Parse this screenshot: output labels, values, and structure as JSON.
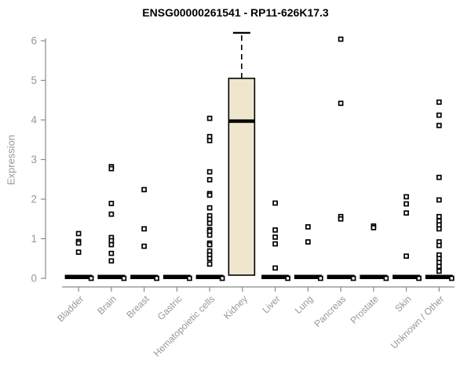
{
  "title": "ENSG00000261541 - RP11-626K17.3",
  "colors": {
    "background": "#ffffff",
    "title_text": "#000000",
    "axis_line": "#8a8a8a",
    "tick_text": "#979797",
    "point_stroke": "#000000",
    "point_fill": "#ffffff",
    "zero_bar": "#000000",
    "box_fill": "#efe7cd",
    "box_stroke": "#000000"
  },
  "chart_data": {
    "type": "boxplot",
    "title": "ENSG00000261541 - RP11-626K17.3",
    "xlabel": "",
    "ylabel": "Expression",
    "ylim": [
      0,
      6
    ],
    "yticks": [
      0,
      1,
      2,
      3,
      4,
      5,
      6
    ],
    "grid": false,
    "legend": false,
    "marker": "open-square",
    "categories": [
      "Bladder",
      "Brain",
      "Breast",
      "Gastric",
      "Hematopoietic cells",
      "Kidney",
      "Liver",
      "Lung",
      "Pancreas",
      "Prostate",
      "Skin",
      "Unknown / Other"
    ],
    "series": [
      {
        "name": "Bladder",
        "zero_cluster": true,
        "points": [
          1.13,
          0.93,
          0.89,
          0.66
        ]
      },
      {
        "name": "Brain",
        "zero_cluster": true,
        "points": [
          2.82,
          2.77,
          1.89,
          1.62,
          1.03,
          0.95,
          0.85,
          0.63,
          0.44
        ]
      },
      {
        "name": "Breast",
        "zero_cluster": true,
        "points": [
          2.24,
          1.25,
          0.81
        ]
      },
      {
        "name": "Gastric",
        "zero_cluster": true,
        "points": []
      },
      {
        "name": "Hematopoietic cells",
        "zero_cluster": true,
        "points": [
          4.04,
          3.58,
          3.48,
          2.69,
          2.49,
          2.14,
          2.1,
          1.78,
          1.58,
          1.49,
          1.39,
          1.23,
          1.19,
          1.09,
          0.89,
          0.85,
          0.69,
          0.59,
          0.5,
          0.36
        ]
      },
      {
        "name": "Kidney",
        "zero_cluster": false,
        "points": [],
        "box": {
          "q1": 0.08,
          "median": 3.97,
          "q3": 5.05,
          "whisker_high": 6.2
        }
      },
      {
        "name": "Liver",
        "zero_cluster": true,
        "points": [
          1.9,
          1.22,
          1.04,
          0.87,
          0.26
        ]
      },
      {
        "name": "Lung",
        "zero_cluster": true,
        "points": [
          1.3,
          0.92
        ]
      },
      {
        "name": "Pancreas",
        "zero_cluster": true,
        "points": [
          6.04,
          4.42,
          1.56,
          1.5
        ]
      },
      {
        "name": "Prostate",
        "zero_cluster": true,
        "points": [
          1.32,
          1.28
        ]
      },
      {
        "name": "Skin",
        "zero_cluster": true,
        "points": [
          2.06,
          1.88,
          1.65,
          0.56
        ]
      },
      {
        "name": "Unknown / Other",
        "zero_cluster": true,
        "points": [
          4.45,
          4.12,
          3.86,
          2.55,
          1.98,
          1.56,
          1.45,
          1.35,
          1.25,
          0.92,
          0.83,
          0.59,
          0.5,
          0.4,
          0.3,
          0.18
        ]
      }
    ]
  }
}
